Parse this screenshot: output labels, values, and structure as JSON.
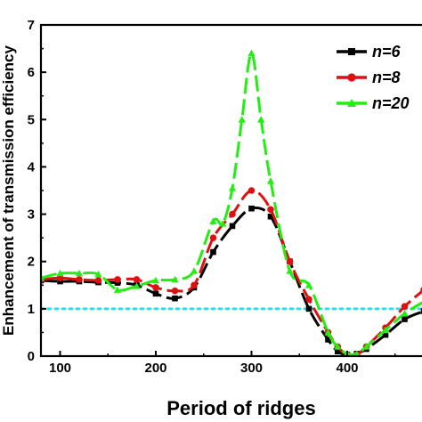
{
  "chart_data": {
    "type": "line",
    "xlabel": "Period of ridges",
    "ylabel": "Enhancement of transmission efficiency",
    "xlim": [
      80,
      480
    ],
    "ylim": [
      0,
      7
    ],
    "xticks": [
      100,
      200,
      300,
      400
    ],
    "yticks": [
      0,
      1,
      2,
      3,
      4,
      5,
      6,
      7
    ],
    "grid": false,
    "legend_position": "top-right",
    "reference_line": {
      "y": 1,
      "color": "#33ddee",
      "style": "dotted"
    },
    "series": [
      {
        "name": "n=6",
        "color": "#000000",
        "marker": "square",
        "dash": "long-dash",
        "x": [
          80,
          100,
          120,
          140,
          160,
          180,
          200,
          220,
          240,
          260,
          280,
          300,
          320,
          340,
          360,
          380,
          390,
          400,
          410,
          420,
          440,
          460,
          480
        ],
        "y": [
          1.6,
          1.58,
          1.58,
          1.56,
          1.55,
          1.5,
          1.32,
          1.22,
          1.45,
          2.2,
          2.75,
          3.12,
          2.95,
          2.0,
          1.0,
          0.35,
          0.1,
          0.03,
          0.05,
          0.15,
          0.45,
          0.78,
          0.95
        ]
      },
      {
        "name": "n=8",
        "color": "#dd1111",
        "marker": "circle",
        "dash": "long-dash",
        "x": [
          80,
          100,
          120,
          140,
          160,
          180,
          200,
          220,
          240,
          260,
          280,
          300,
          320,
          340,
          360,
          380,
          390,
          400,
          410,
          420,
          440,
          460,
          480
        ],
        "y": [
          1.62,
          1.65,
          1.62,
          1.6,
          1.62,
          1.62,
          1.45,
          1.38,
          1.5,
          2.5,
          3.0,
          3.5,
          3.1,
          2.0,
          1.2,
          0.5,
          0.2,
          0.03,
          0.03,
          0.2,
          0.6,
          1.05,
          1.4
        ]
      },
      {
        "name": "n=20",
        "color": "#22ee11",
        "marker": "triangle",
        "dash": "long-dash",
        "x": [
          80,
          100,
          120,
          140,
          160,
          180,
          200,
          220,
          240,
          260,
          270,
          280,
          290,
          300,
          310,
          320,
          340,
          360,
          380,
          390,
          400,
          410,
          420,
          440,
          460,
          480
        ],
        "y": [
          1.65,
          1.75,
          1.75,
          1.73,
          1.4,
          1.48,
          1.6,
          1.62,
          1.8,
          2.85,
          2.8,
          3.55,
          5.0,
          6.4,
          5.0,
          3.7,
          1.8,
          1.5,
          0.5,
          0.2,
          0.05,
          0.05,
          0.2,
          0.55,
          0.9,
          1.15
        ]
      }
    ]
  }
}
